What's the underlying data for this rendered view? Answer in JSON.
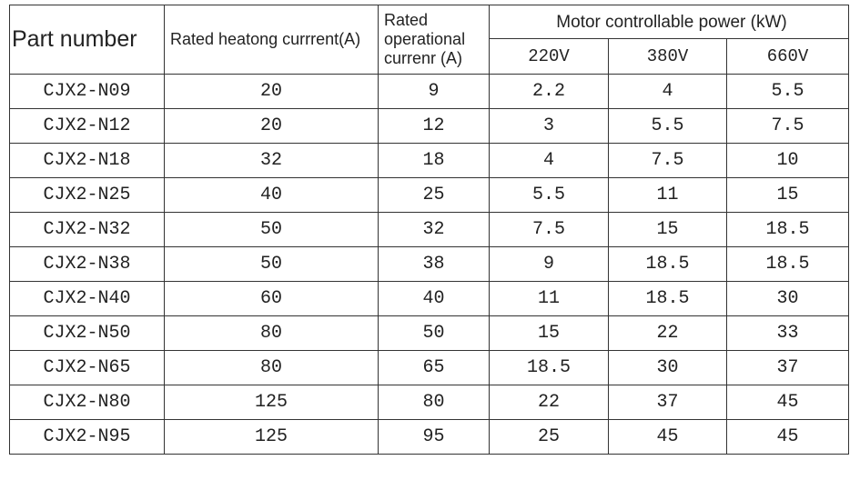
{
  "header": {
    "part_number": "Part number",
    "heating_current": "Rated heatong currrent(A)",
    "operational_current": "Rated operational currenr (A)",
    "motor_power": "Motor controllable power (kW)",
    "voltages": [
      "220V",
      "380V",
      "660V"
    ]
  },
  "table": {
    "rows": [
      [
        "CJX2-N09",
        "20",
        "9",
        "2.2",
        "4",
        "5.5"
      ],
      [
        "CJX2-N12",
        "20",
        "12",
        "3",
        "5.5",
        "7.5"
      ],
      [
        "CJX2-N18",
        "32",
        "18",
        "4",
        "7.5",
        "10"
      ],
      [
        "CJX2-N25",
        "40",
        "25",
        "5.5",
        "11",
        "15"
      ],
      [
        "CJX2-N32",
        "50",
        "32",
        "7.5",
        "15",
        "18.5"
      ],
      [
        "CJX2-N38",
        "50",
        "38",
        "9",
        "18.5",
        "18.5"
      ],
      [
        "CJX2-N40",
        "60",
        "40",
        "11",
        "18.5",
        "30"
      ],
      [
        "CJX2-N50",
        "80",
        "50",
        "15",
        "22",
        "33"
      ],
      [
        "CJX2-N65",
        "80",
        "65",
        "18.5",
        "30",
        "37"
      ],
      [
        "CJX2-N80",
        "125",
        "80",
        "22",
        "37",
        "45"
      ],
      [
        "CJX2-N95",
        "125",
        "95",
        "25",
        "45",
        "45"
      ]
    ]
  }
}
